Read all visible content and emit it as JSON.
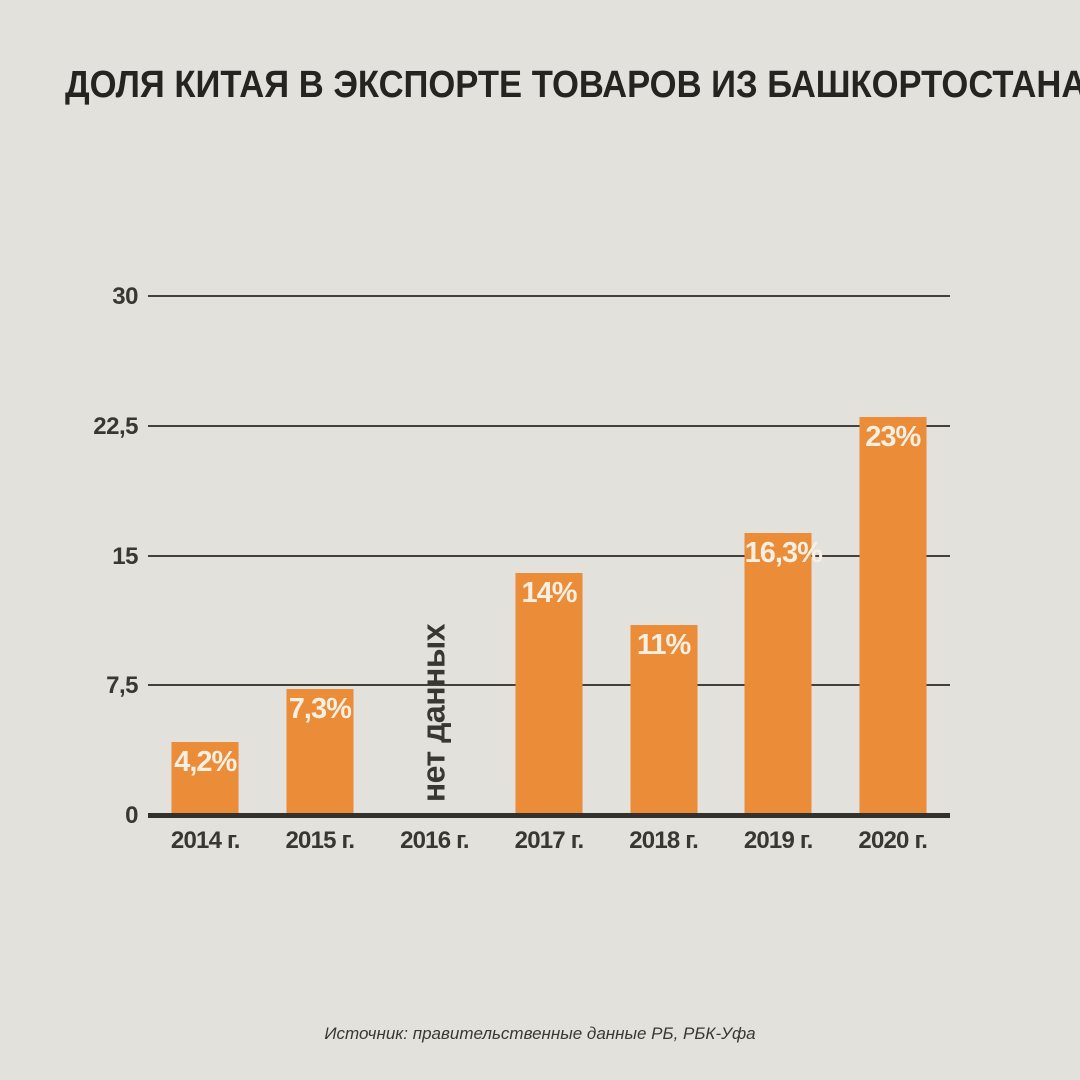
{
  "chart_data": {
    "type": "bar",
    "title": "ДОЛЯ КИТАЯ В ЭКСПОРТЕ ТОВАРОВ ИЗ БАШКОРТОСТАНА",
    "categories": [
      "2014 г.",
      "2015 г.",
      "2016 г.",
      "2017 г.",
      "2018 г.",
      "2019 г.",
      "2020 г."
    ],
    "values": [
      4.2,
      7.3,
      null,
      14,
      11,
      16.3,
      23
    ],
    "bar_labels": [
      "4,2%",
      "7,3%",
      null,
      "14%",
      "11%",
      "16,3%",
      "23%"
    ],
    "no_data_label": "нет данных",
    "no_data_index": 2,
    "xlabel": "",
    "ylabel": "",
    "ylim": [
      0,
      30
    ],
    "yticks": [
      {
        "value": 30,
        "label": "30"
      },
      {
        "value": 22.5,
        "label": "22,5"
      },
      {
        "value": 15,
        "label": "15"
      },
      {
        "value": 7.5,
        "label": "7,5"
      },
      {
        "value": 0,
        "label": "0"
      }
    ],
    "grid": true,
    "legend": false,
    "source": "Источник: правительственные данные РБ, РБК-Уфа",
    "colors": {
      "background": "#E3E1DC",
      "bar": "#EA8C38",
      "bar_label": "#F6EFE2",
      "title": "#262420",
      "text": "#3A3733",
      "gridline": "#44413C",
      "baseline": "#33312D"
    }
  }
}
